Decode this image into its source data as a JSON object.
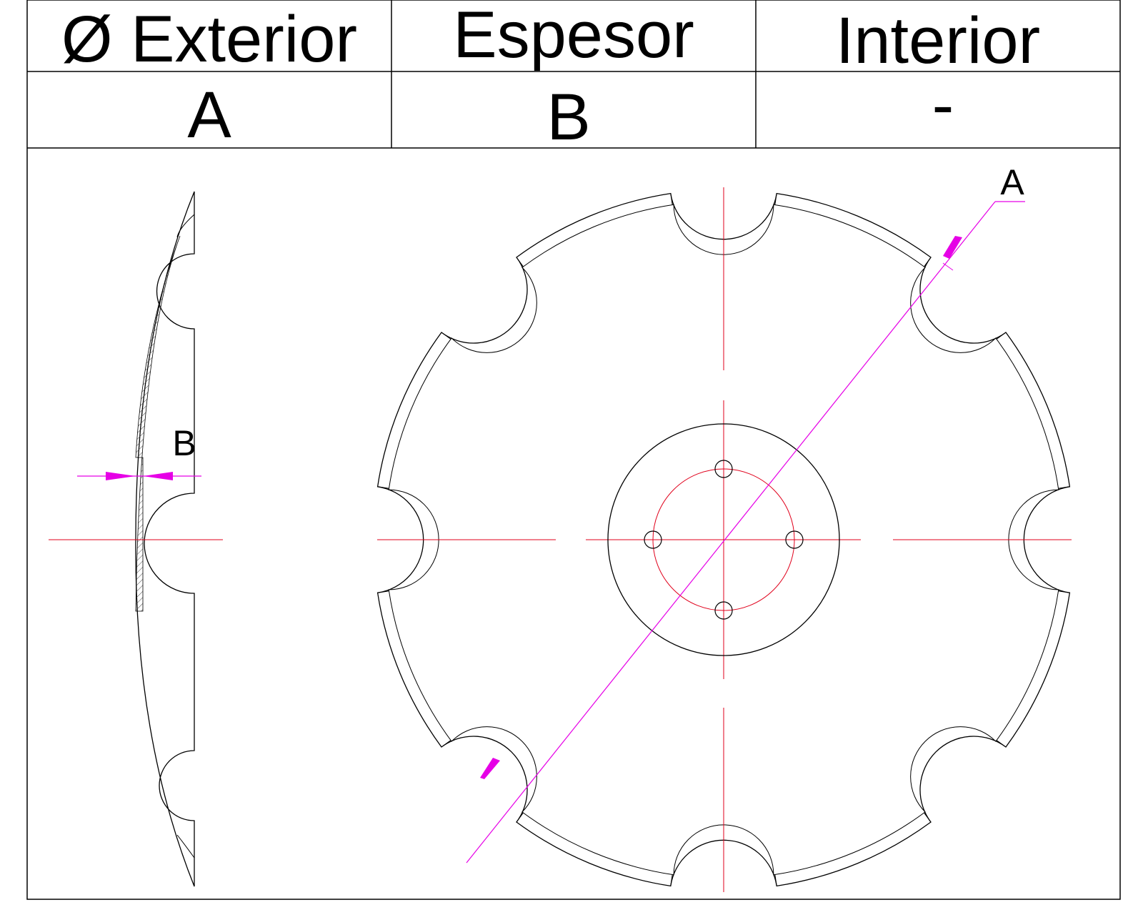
{
  "table": {
    "headers": [
      "Ø Exterior",
      "Espesor",
      "Interior"
    ],
    "values": [
      "A",
      "B",
      "-"
    ]
  },
  "drawing": {
    "dimension_labels": {
      "diameter": "A",
      "thickness": "B"
    },
    "notch_count": 8,
    "bolt_hole_count": 4,
    "colors": {
      "outline": "#000000",
      "centerline": "#e0001b",
      "dimension": "#e600e6",
      "hatch": "#4a4a4a"
    }
  }
}
